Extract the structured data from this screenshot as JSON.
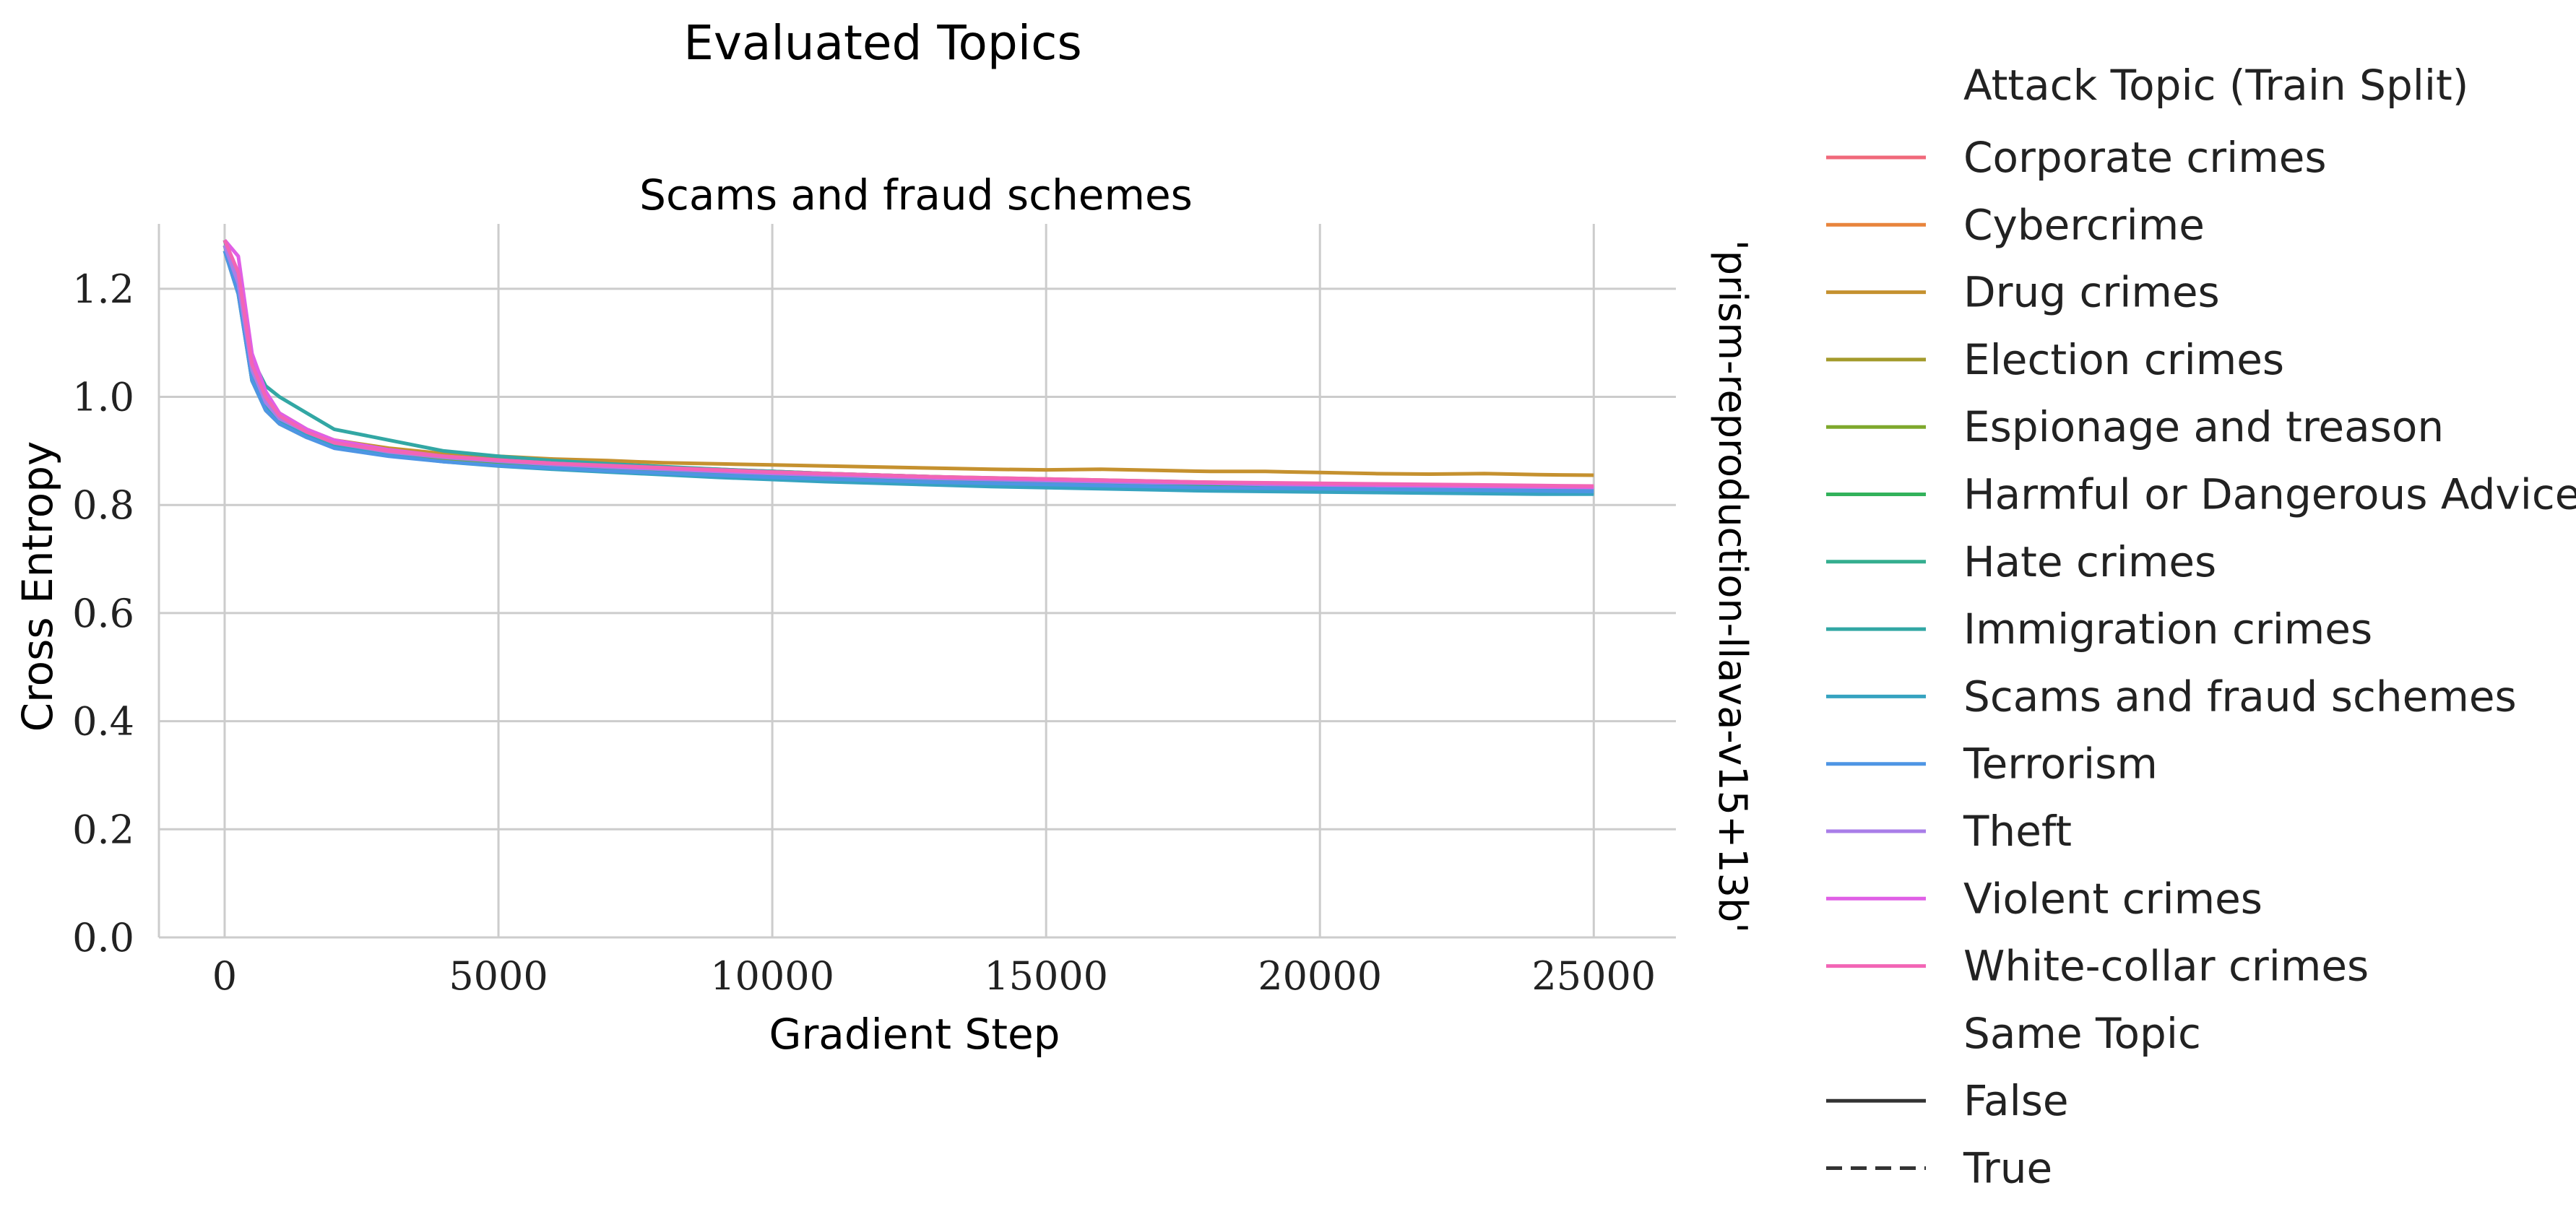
{
  "chart_data": {
    "type": "line",
    "suptitle": "Evaluated Topics",
    "title": "Scams and fraud schemes",
    "xlabel": "Gradient Step",
    "ylabel": "Cross Entropy",
    "row_label": "'prism-reproduction-llava-v15+13b'",
    "xlim": [
      -1200,
      26500
    ],
    "ylim": [
      0,
      1.32
    ],
    "xticks": [
      0,
      5000,
      10000,
      15000,
      20000,
      25000
    ],
    "xtick_labels": [
      "0",
      "5000",
      "10000",
      "15000",
      "20000",
      "25000"
    ],
    "yticks": [
      0.0,
      0.2,
      0.4,
      0.6,
      0.8,
      1.0,
      1.2
    ],
    "ytick_labels": [
      "0.0",
      "0.2",
      "0.4",
      "0.6",
      "0.8",
      "1.0",
      "1.2"
    ],
    "grid": true,
    "legend_position": "right",
    "x": [
      0,
      250,
      500,
      750,
      1000,
      1500,
      2000,
      3000,
      4000,
      5000,
      6000,
      7000,
      8000,
      9000,
      10000,
      11000,
      12000,
      13000,
      14000,
      15000,
      16000,
      17000,
      18000,
      19000,
      20000,
      21000,
      22000,
      23000,
      24000,
      25000
    ],
    "series": [
      {
        "name": "Corporate crimes",
        "color": "#f0697b",
        "values": [
          1.29,
          1.22,
          1.05,
          0.99,
          0.96,
          0.93,
          0.915,
          0.9,
          0.89,
          0.885,
          0.88,
          0.875,
          0.87,
          0.865,
          0.86,
          0.855,
          0.85,
          0.848,
          0.845,
          0.842,
          0.84,
          0.838,
          0.836,
          0.834,
          0.832,
          0.83,
          0.83,
          0.828,
          0.826,
          0.825
        ]
      },
      {
        "name": "Cybercrime",
        "color": "#e8843c",
        "values": [
          1.28,
          1.2,
          1.04,
          0.99,
          0.96,
          0.935,
          0.92,
          0.9,
          0.89,
          0.885,
          0.878,
          0.874,
          0.87,
          0.866,
          0.862,
          0.858,
          0.855,
          0.852,
          0.849,
          0.846,
          0.844,
          0.842,
          0.84,
          0.838,
          0.836,
          0.834,
          0.833,
          0.832,
          0.83,
          0.83
        ]
      },
      {
        "name": "Drug crimes",
        "color": "#c5912f",
        "values": [
          1.29,
          1.21,
          1.06,
          1.0,
          0.97,
          0.94,
          0.92,
          0.905,
          0.895,
          0.89,
          0.885,
          0.882,
          0.878,
          0.876,
          0.874,
          0.872,
          0.87,
          0.868,
          0.866,
          0.865,
          0.866,
          0.864,
          0.862,
          0.862,
          0.86,
          0.858,
          0.857,
          0.858,
          0.856,
          0.855
        ]
      },
      {
        "name": "Election crimes",
        "color": "#a39a2b",
        "values": [
          1.28,
          1.2,
          1.04,
          0.98,
          0.955,
          0.93,
          0.915,
          0.9,
          0.89,
          0.883,
          0.878,
          0.873,
          0.869,
          0.865,
          0.862,
          0.858,
          0.855,
          0.852,
          0.85,
          0.848,
          0.846,
          0.844,
          0.842,
          0.84,
          0.838,
          0.836,
          0.835,
          0.834,
          0.832,
          0.831
        ]
      },
      {
        "name": "Espionage and treason",
        "color": "#7ea82c",
        "values": [
          1.27,
          1.19,
          1.03,
          0.975,
          0.95,
          0.925,
          0.91,
          0.895,
          0.885,
          0.878,
          0.873,
          0.868,
          0.864,
          0.86,
          0.857,
          0.853,
          0.85,
          0.848,
          0.845,
          0.843,
          0.841,
          0.839,
          0.837,
          0.835,
          0.833,
          0.831,
          0.83,
          0.828,
          0.826,
          0.822
        ]
      },
      {
        "name": "Harmful or Dangerous Advice",
        "color": "#32b25b",
        "values": [
          1.28,
          1.2,
          1.03,
          0.98,
          0.955,
          0.93,
          0.915,
          0.898,
          0.888,
          0.88,
          0.874,
          0.869,
          0.865,
          0.861,
          0.857,
          0.853,
          0.85,
          0.847,
          0.845,
          0.842,
          0.84,
          0.838,
          0.836,
          0.834,
          0.832,
          0.83,
          0.829,
          0.827,
          0.825,
          0.822
        ]
      },
      {
        "name": "Hate crimes",
        "color": "#34ae8f",
        "values": [
          1.28,
          1.2,
          1.04,
          0.985,
          0.96,
          0.935,
          0.918,
          0.9,
          0.89,
          0.883,
          0.877,
          0.872,
          0.868,
          0.864,
          0.86,
          0.857,
          0.853,
          0.85,
          0.848,
          0.846,
          0.843,
          0.841,
          0.84,
          0.838,
          0.836,
          0.834,
          0.832,
          0.83,
          0.829,
          0.828
        ]
      },
      {
        "name": "Immigration crimes",
        "color": "#32a7a4",
        "values": [
          1.29,
          1.21,
          1.07,
          1.02,
          1.0,
          0.97,
          0.94,
          0.92,
          0.9,
          0.89,
          0.882,
          0.876,
          0.871,
          0.866,
          0.862,
          0.858,
          0.855,
          0.852,
          0.849,
          0.846,
          0.844,
          0.842,
          0.84,
          0.838,
          0.836,
          0.834,
          0.832,
          0.83,
          0.829,
          0.828
        ]
      },
      {
        "name": "Scams and fraud schemes",
        "color": "#36a3c0",
        "values": [
          1.28,
          1.2,
          1.04,
          0.98,
          0.955,
          0.93,
          0.91,
          0.892,
          0.88,
          0.872,
          0.866,
          0.861,
          0.856,
          0.851,
          0.847,
          0.843,
          0.84,
          0.837,
          0.834,
          0.832,
          0.83,
          0.828,
          0.826,
          0.825,
          0.824,
          0.823,
          0.822,
          0.821,
          0.82,
          0.82
        ]
      },
      {
        "name": "Terrorism",
        "color": "#4e95e4",
        "values": [
          1.27,
          1.19,
          1.03,
          0.975,
          0.95,
          0.925,
          0.905,
          0.89,
          0.88,
          0.873,
          0.868,
          0.863,
          0.859,
          0.855,
          0.851,
          0.848,
          0.845,
          0.842,
          0.84,
          0.838,
          0.836,
          0.834,
          0.832,
          0.831,
          0.83,
          0.829,
          0.828,
          0.827,
          0.826,
          0.825
        ]
      },
      {
        "name": "Theft",
        "color": "#a97ee8",
        "values": [
          1.28,
          1.21,
          1.05,
          0.99,
          0.96,
          0.935,
          0.915,
          0.898,
          0.888,
          0.881,
          0.875,
          0.87,
          0.866,
          0.862,
          0.858,
          0.855,
          0.852,
          0.849,
          0.847,
          0.845,
          0.843,
          0.841,
          0.84,
          0.838,
          0.837,
          0.836,
          0.835,
          0.834,
          0.833,
          0.832
        ]
      },
      {
        "name": "Violent crimes",
        "color": "#e05fe6",
        "values": [
          1.29,
          1.26,
          1.08,
          1.01,
          0.97,
          0.94,
          0.92,
          0.902,
          0.89,
          0.883,
          0.877,
          0.872,
          0.868,
          0.864,
          0.86,
          0.857,
          0.854,
          0.851,
          0.849,
          0.847,
          0.845,
          0.843,
          0.841,
          0.84,
          0.838,
          0.837,
          0.836,
          0.835,
          0.834,
          0.833
        ]
      },
      {
        "name": "White-collar crimes",
        "color": "#f265b5",
        "values": [
          1.29,
          1.23,
          1.06,
          1.0,
          0.965,
          0.935,
          0.915,
          0.9,
          0.89,
          0.883,
          0.877,
          0.873,
          0.869,
          0.865,
          0.861,
          0.858,
          0.855,
          0.852,
          0.85,
          0.848,
          0.846,
          0.844,
          0.842,
          0.841,
          0.84,
          0.839,
          0.838,
          0.837,
          0.836,
          0.835
        ]
      }
    ],
    "legend": {
      "title": "Attack Topic (Train Split)",
      "style_title": "Same Topic",
      "styles": [
        {
          "label": "False",
          "dash": "solid",
          "color": "#333333"
        },
        {
          "label": "True",
          "dash": "dashed",
          "color": "#333333"
        }
      ]
    }
  }
}
